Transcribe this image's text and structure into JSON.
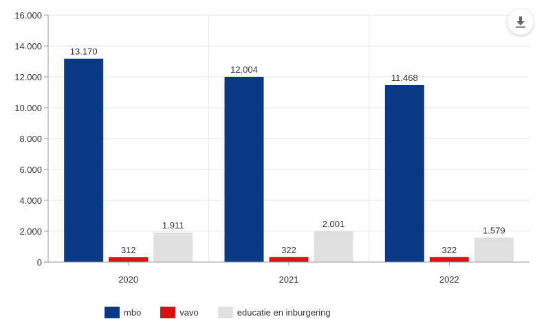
{
  "chart_data": {
    "type": "bar",
    "title": "",
    "xlabel": "",
    "ylabel": "",
    "categories": [
      "2020",
      "2021",
      "2022"
    ],
    "series": [
      {
        "name": "mbo",
        "color": "#0a3a86",
        "values": [
          13170,
          12004,
          11468
        ],
        "labels": [
          "13.170",
          "12.004",
          "11.468"
        ]
      },
      {
        "name": "vavo",
        "color": "#e00f16",
        "values": [
          312,
          322,
          322
        ],
        "labels": [
          "312",
          "322",
          "322"
        ]
      },
      {
        "name": "educatie en inburgering",
        "color": "#e0e0e0",
        "values": [
          1911,
          2001,
          1579
        ],
        "labels": [
          "1.911",
          "2.001",
          "1.579"
        ]
      }
    ],
    "ylim": [
      0,
      16000
    ],
    "yticks": [
      0,
      2000,
      4000,
      6000,
      8000,
      10000,
      12000,
      14000,
      16000
    ],
    "ytick_labels": [
      "0",
      "2.000",
      "4.000",
      "6.000",
      "8.000",
      "10.000",
      "12.000",
      "14.000",
      "16.000"
    ],
    "grid": true,
    "legend_position": "bottom-left"
  },
  "download_button": {
    "icon": "download-icon"
  }
}
